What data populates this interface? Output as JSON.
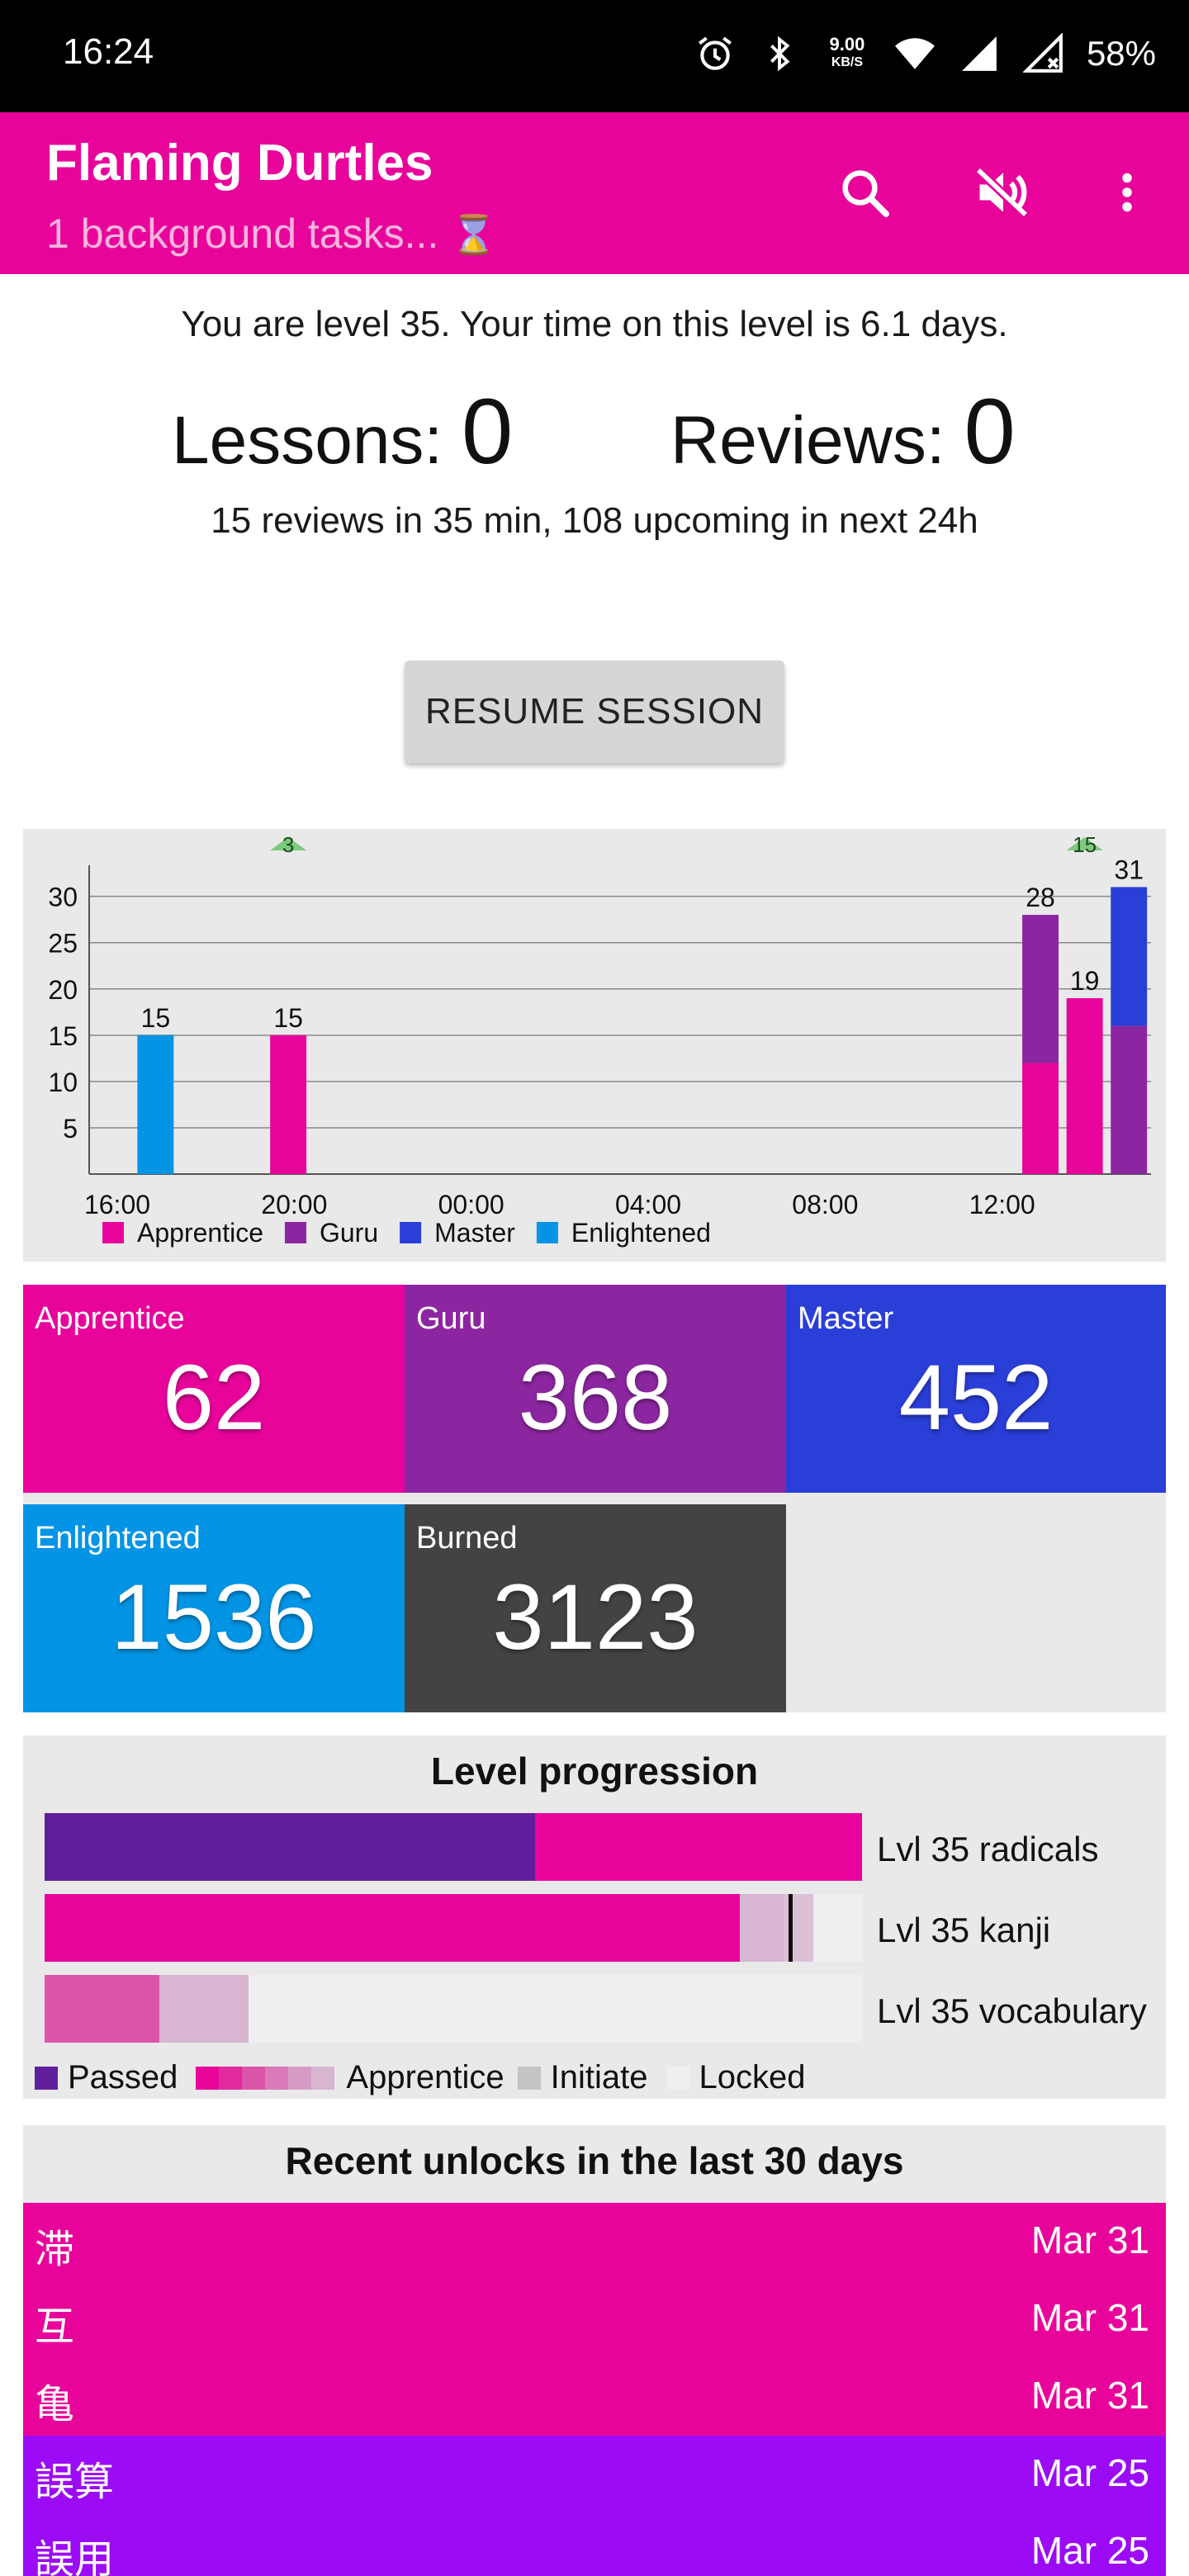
{
  "status_bar": {
    "time": "16:24",
    "net_speed_value": "9.00",
    "net_speed_unit": "KB/S",
    "battery": "58%",
    "icons": [
      "alarm-icon",
      "bluetooth-icon",
      "wifi-icon",
      "signal-icon",
      "signal-no-data-icon"
    ]
  },
  "app_bar": {
    "title": "Flaming Durtles",
    "subtitle": "1 background tasks...",
    "subtitle_icon": "⌛",
    "actions": [
      "search-icon",
      "volume-off-icon",
      "more-vert-icon"
    ]
  },
  "summary": {
    "level_text": "You are level 35. Your time on this level is 6.1 days.",
    "lessons_label": "Lessons:",
    "lessons_count": "0",
    "reviews_label": "Reviews:",
    "reviews_count": "0",
    "upcoming_text": "15 reviews in 35 min, 108 upcoming in next 24h",
    "resume_button": "RESUME SESSION"
  },
  "chart_data": {
    "type": "bar",
    "stacked": true,
    "x_tick_labels": [
      "16:00",
      "20:00",
      "00:00",
      "04:00",
      "08:00",
      "12:00"
    ],
    "y_ticks": [
      5,
      10,
      15,
      20,
      25,
      30
    ],
    "ylim": [
      0,
      33
    ],
    "grid": true,
    "legend_position": "bottom",
    "series_names": [
      "Apprentice",
      "Guru",
      "Master",
      "Enlightened"
    ],
    "colors": {
      "Apprentice": "#e8049b",
      "Guru": "#8c26a0",
      "Master": "#2a3ed8",
      "Enlightened": "#0394e5"
    },
    "bars": [
      {
        "hour_offset": 1,
        "total": 15,
        "segments": {
          "Apprentice": 0,
          "Guru": 0,
          "Master": 0,
          "Enlightened": 15
        }
      },
      {
        "hour_offset": 4,
        "total": 15,
        "segments": {
          "Apprentice": 15,
          "Guru": 0,
          "Master": 0,
          "Enlightened": 0
        }
      },
      {
        "hour_offset": 21,
        "total": 28,
        "segments": {
          "Apprentice": 12,
          "Guru": 16,
          "Master": 0,
          "Enlightened": 0
        }
      },
      {
        "hour_offset": 22,
        "total": 19,
        "segments": {
          "Apprentice": 19,
          "Guru": 0,
          "Master": 0,
          "Enlightened": 0
        }
      },
      {
        "hour_offset": 23,
        "total": 31,
        "segments": {
          "Apprentice": 0,
          "Guru": 16,
          "Master": 15,
          "Enlightened": 0
        }
      }
    ],
    "level_markers": [
      {
        "hour_offset": 4,
        "label": "3"
      },
      {
        "hour_offset": 22,
        "label": "15"
      }
    ]
  },
  "srs_tiles": [
    {
      "label": "Apprentice",
      "value": "62",
      "color": "#e8049b"
    },
    {
      "label": "Guru",
      "value": "368",
      "color": "#8c26a0"
    },
    {
      "label": "Master",
      "value": "452",
      "color": "#2a3ed8"
    },
    {
      "label": "Enlightened",
      "value": "1536",
      "color": "#0394e5"
    },
    {
      "label": "Burned",
      "value": "3123",
      "color": "#434343"
    }
  ],
  "level_progression": {
    "title": "Level progression",
    "rows": [
      {
        "label": "Lvl 35 radicals",
        "passed_fraction": 0.6,
        "apprentice_fraction": 0.4,
        "initiate_fraction": 0.0
      },
      {
        "label": "Lvl 35 kanji",
        "passed_fraction": 0.0,
        "apprentice_fraction": 0.85,
        "initiate_fraction": 0.09,
        "marker_fraction": 0.91
      },
      {
        "label": "Lvl 35 vocabulary",
        "passed_fraction": 0.0,
        "apprentice_fraction": 0.25,
        "initiate_fraction": 0.0
      }
    ],
    "legend": {
      "passed": "Passed",
      "apprentice": "Apprentice",
      "initiate": "Initiate",
      "locked": "Locked"
    },
    "colors": {
      "passed": "#5f1f9c",
      "apprentice_ramp": [
        "#e8049b",
        "#e22a9f",
        "#dc55ab",
        "#d87bb8",
        "#d79ac5",
        "#d8b5d1"
      ],
      "initiate": "#c4c4c4",
      "locked": "#efefef"
    }
  },
  "recent_unlocks": {
    "title": "Recent unlocks in the last 30 days",
    "items": [
      {
        "character": "滞",
        "date": "Mar 31",
        "color": "#e8049b"
      },
      {
        "character": "互",
        "date": "Mar 31",
        "color": "#e8049b"
      },
      {
        "character": "亀",
        "date": "Mar 31",
        "color": "#e8049b"
      },
      {
        "character": "誤算",
        "date": "Mar 25",
        "color": "#9b0bf5"
      },
      {
        "character": "誤用",
        "date": "Mar 25",
        "color": "#9b0bf5"
      }
    ]
  }
}
